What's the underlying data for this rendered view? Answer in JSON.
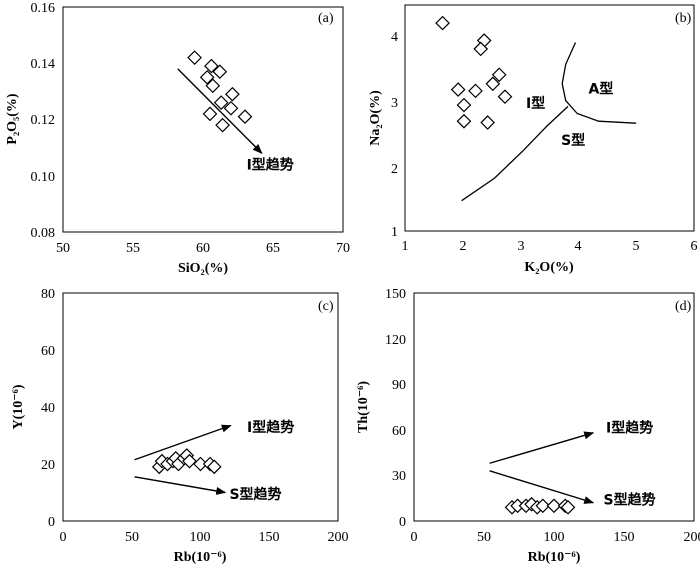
{
  "chart_data": [
    {
      "type": "scatter",
      "panel_label": "(a)",
      "xlabel": "SiO₂(%)",
      "ylabel": "P₂O₅(%)",
      "xlim": [
        50,
        70
      ],
      "ylim": [
        0.08,
        0.16
      ],
      "xticks": [
        "50",
        "55",
        "60",
        "65",
        "70"
      ],
      "yticks": [
        "0.08",
        "0.10",
        "0.12",
        "0.14",
        "0.16"
      ],
      "points": [
        {
          "x": 59.4,
          "y": 0.142
        },
        {
          "x": 60.6,
          "y": 0.139
        },
        {
          "x": 61.2,
          "y": 0.137
        },
        {
          "x": 60.3,
          "y": 0.135
        },
        {
          "x": 60.7,
          "y": 0.132
        },
        {
          "x": 62.1,
          "y": 0.129
        },
        {
          "x": 61.3,
          "y": 0.126
        },
        {
          "x": 62.0,
          "y": 0.124
        },
        {
          "x": 60.5,
          "y": 0.122
        },
        {
          "x": 63.0,
          "y": 0.121
        },
        {
          "x": 61.4,
          "y": 0.118
        }
      ],
      "annotations": [
        {
          "text": "I型趋势",
          "x": 64.8,
          "y": 0.104,
          "anchor": "middle"
        }
      ],
      "trend_arrows": [
        {
          "from": [
            58.2,
            0.138
          ],
          "to": [
            64.2,
            0.108
          ]
        }
      ]
    },
    {
      "type": "scatter",
      "panel_label": "(b)",
      "xlabel": "K₂O(%)",
      "ylabel": "Na₂O(%)",
      "xlim": [
        1,
        6
      ],
      "ylim": [
        1,
        4.5
      ],
      "xticks": [
        "1",
        "2",
        "3",
        "4",
        "5",
        "6"
      ],
      "yticks": [
        "1",
        "2",
        "3",
        "4"
      ],
      "points": [
        {
          "x": 1.65,
          "y": 4.22
        },
        {
          "x": 2.37,
          "y": 3.95
        },
        {
          "x": 2.31,
          "y": 3.82
        },
        {
          "x": 2.63,
          "y": 3.42
        },
        {
          "x": 2.52,
          "y": 3.28
        },
        {
          "x": 1.92,
          "y": 3.19
        },
        {
          "x": 2.22,
          "y": 3.17
        },
        {
          "x": 2.73,
          "y": 3.08
        },
        {
          "x": 2.02,
          "y": 2.95
        },
        {
          "x": 2.02,
          "y": 2.7
        },
        {
          "x": 2.43,
          "y": 2.68
        }
      ],
      "annotations": [
        {
          "text": "A型",
          "x": 4.39,
          "y": 3.21,
          "anchor": "middle"
        },
        {
          "text": "I型",
          "x": 3.26,
          "y": 2.98,
          "anchor": "middle"
        },
        {
          "text": "S型",
          "x": 3.91,
          "y": 2.41,
          "anchor": "middle"
        }
      ],
      "boundaries": [
        [
          [
            3.95,
            3.92
          ],
          [
            3.78,
            3.58
          ],
          [
            3.72,
            3.28
          ],
          [
            3.78,
            3.02
          ],
          [
            3.98,
            2.82
          ],
          [
            4.35,
            2.7
          ],
          [
            5.0,
            2.67
          ]
        ],
        [
          [
            1.98,
            1.47
          ],
          [
            2.55,
            1.82
          ],
          [
            3.05,
            2.25
          ],
          [
            3.45,
            2.62
          ],
          [
            3.82,
            2.93
          ]
        ]
      ]
    },
    {
      "type": "scatter",
      "panel_label": "(c)",
      "xlabel": "Rb(10⁻⁶)",
      "ylabel": "Y(10⁻⁶)",
      "xlim": [
        0,
        200
      ],
      "ylim": [
        0,
        80
      ],
      "xticks": [
        "0",
        "50",
        "100",
        "150",
        "200"
      ],
      "yticks": [
        "0",
        "20",
        "40",
        "60",
        "80"
      ],
      "points": [
        {
          "x": 70,
          "y": 19
        },
        {
          "x": 72,
          "y": 21
        },
        {
          "x": 76,
          "y": 20
        },
        {
          "x": 80,
          "y": 21
        },
        {
          "x": 82,
          "y": 22
        },
        {
          "x": 84,
          "y": 20
        },
        {
          "x": 88,
          "y": 22
        },
        {
          "x": 90,
          "y": 23
        },
        {
          "x": 92,
          "y": 21
        },
        {
          "x": 100,
          "y": 20
        },
        {
          "x": 107,
          "y": 20
        },
        {
          "x": 110,
          "y": 19
        }
      ],
      "annotations": [
        {
          "text": "I型趋势",
          "x": 151,
          "y": 33,
          "anchor": "middle"
        },
        {
          "text": "S型趋势",
          "x": 140,
          "y": 9.5,
          "anchor": "middle"
        }
      ],
      "trend_arrows": [
        {
          "from": [
            52,
            21.5
          ],
          "to": [
            122,
            33.5
          ]
        },
        {
          "from": [
            52,
            15.5
          ],
          "to": [
            118,
            10
          ]
        }
      ]
    },
    {
      "type": "scatter",
      "panel_label": "(d)",
      "xlabel": "Rb(10⁻⁶)",
      "ylabel": "Th(10⁻⁶)",
      "xlim": [
        0,
        200
      ],
      "ylim": [
        0,
        150
      ],
      "xticks": [
        "0",
        "50",
        "100",
        "150",
        "200"
      ],
      "yticks": [
        "0",
        "30",
        "60",
        "90",
        "120",
        "150"
      ],
      "points": [
        {
          "x": 70,
          "y": 9
        },
        {
          "x": 74,
          "y": 10
        },
        {
          "x": 80,
          "y": 10
        },
        {
          "x": 84,
          "y": 11
        },
        {
          "x": 88,
          "y": 9
        },
        {
          "x": 92,
          "y": 10
        },
        {
          "x": 100,
          "y": 10
        },
        {
          "x": 108,
          "y": 10
        },
        {
          "x": 110,
          "y": 9
        }
      ],
      "annotations": [
        {
          "text": "I型趋势",
          "x": 154,
          "y": 61.5,
          "anchor": "middle"
        },
        {
          "text": "S型趋势",
          "x": 154,
          "y": 14,
          "anchor": "middle"
        }
      ],
      "trend_arrows": [
        {
          "from": [
            54,
            38
          ],
          "to": [
            128,
            58
          ]
        },
        {
          "from": [
            54,
            33
          ],
          "to": [
            128,
            12
          ]
        }
      ]
    }
  ]
}
